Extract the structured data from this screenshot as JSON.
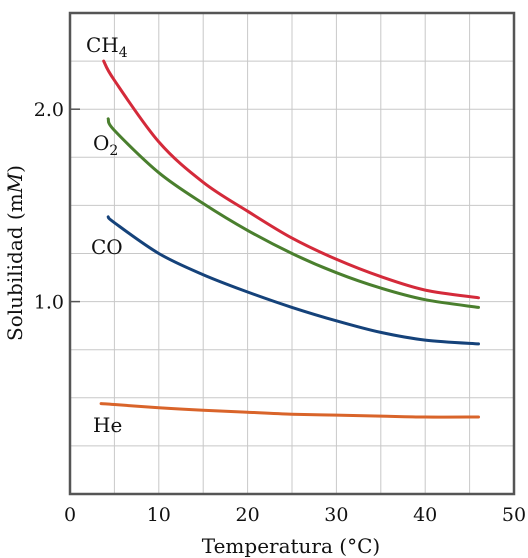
{
  "chart_data": {
    "type": "line",
    "title": "",
    "xlabel": "Temperatura (°C)",
    "ylabel_main": "Solubilidad (m",
    "ylabel_italic": "M",
    "ylabel_end": ")",
    "xlim": [
      0,
      50
    ],
    "ylim": [
      0,
      2.5
    ],
    "x_ticks": [
      0,
      10,
      20,
      30,
      40,
      50
    ],
    "x_tick_labels": [
      "0",
      "10",
      "20",
      "30",
      "40",
      "50"
    ],
    "y_ticks": [
      1.0,
      2.0
    ],
    "y_tick_labels": [
      "1.0",
      "2.0"
    ],
    "grid": true,
    "legend": "inline labels",
    "series": [
      {
        "name": "CH4",
        "label_main": "CH",
        "label_sub": "4",
        "color": "#d42a3a",
        "x": [
          3.8,
          5,
          10,
          15,
          20,
          25,
          30,
          35,
          40,
          46
        ],
        "y": [
          2.25,
          2.15,
          1.83,
          1.62,
          1.47,
          1.33,
          1.22,
          1.13,
          1.06,
          1.02
        ]
      },
      {
        "name": "O2",
        "label_main": "O",
        "label_sub": "2",
        "color": "#4a7f2e",
        "x": [
          4.3,
          5,
          10,
          15,
          20,
          25,
          30,
          35,
          40,
          46
        ],
        "y": [
          1.95,
          1.89,
          1.67,
          1.51,
          1.37,
          1.25,
          1.15,
          1.07,
          1.01,
          0.97
        ]
      },
      {
        "name": "CO",
        "label_main": "CO",
        "label_sub": "",
        "color": "#15427a",
        "x": [
          4.3,
          5,
          10,
          15,
          20,
          25,
          30,
          35,
          40,
          46
        ],
        "y": [
          1.44,
          1.41,
          1.25,
          1.14,
          1.05,
          0.97,
          0.9,
          0.84,
          0.8,
          0.78
        ]
      },
      {
        "name": "He",
        "label_main": "He",
        "label_sub": "",
        "color": "#d9642a",
        "x": [
          3.5,
          5,
          10,
          15,
          20,
          25,
          30,
          35,
          40,
          46
        ],
        "y": [
          0.47,
          0.465,
          0.448,
          0.435,
          0.425,
          0.415,
          0.41,
          0.405,
          0.4,
          0.4
        ]
      }
    ]
  }
}
